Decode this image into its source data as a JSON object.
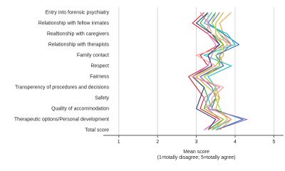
{
  "chart_data": {
    "type": "line",
    "orientation": "horizontal",
    "xlabel": [
      "Mean score",
      "(1=totally disagree; 5=totally agree)"
    ],
    "categories": [
      "Entry into forensic psychiatry",
      "Relationship with fellow inmates",
      "Realtionship with caregivers",
      "Relationship with therapists",
      "Family contact",
      "Respect",
      "Fairness",
      "Transperency of procedures and decisions",
      "Safety",
      "Quality of accommodation",
      "Therapeutic options/Personal development",
      "Total score"
    ],
    "xlim": [
      0.6,
      5.25
    ],
    "xticks": [
      1,
      2,
      3,
      4,
      5
    ],
    "grid": true,
    "series": [
      {
        "color": "#f0a030",
        "values": [
          3.9,
          3.6,
          3.7,
          3.9,
          3.6,
          3.7,
          3.2,
          3.5,
          3.6,
          3.5,
          3.9,
          3.6
        ]
      },
      {
        "color": "#2ca02c",
        "values": [
          3.3,
          3.1,
          3.4,
          3.7,
          3.3,
          3.4,
          2.9,
          3.2,
          3.3,
          3.2,
          3.7,
          3.3
        ]
      },
      {
        "color": "#1f77b4",
        "values": [
          3.5,
          3.3,
          3.7,
          4.1,
          3.5,
          3.7,
          3.1,
          3.4,
          3.5,
          3.4,
          4.2,
          3.5
        ]
      },
      {
        "color": "#d62728",
        "values": [
          3.2,
          2.9,
          3.3,
          3.6,
          3.1,
          3.3,
          2.8,
          3.0,
          3.2,
          3.1,
          3.6,
          3.2
        ]
      },
      {
        "color": "#9467bd",
        "values": [
          3.6,
          3.4,
          3.6,
          3.9,
          3.6,
          3.6,
          3.1,
          3.4,
          3.5,
          3.3,
          4.3,
          3.5
        ]
      },
      {
        "color": "#17becf",
        "values": [
          3.4,
          3.2,
          3.8,
          4.0,
          3.2,
          3.9,
          3.3,
          3.5,
          3.3,
          3.4,
          3.9,
          3.4
        ]
      },
      {
        "color": "#e377c2",
        "values": [
          3.1,
          3.3,
          3.3,
          3.5,
          3.4,
          3.3,
          2.9,
          3.6,
          3.2,
          3.3,
          3.6,
          3.2
        ]
      },
      {
        "color": "#bcbd22",
        "values": [
          3.7,
          3.5,
          3.5,
          3.7,
          3.7,
          3.5,
          3.0,
          3.3,
          3.6,
          3.2,
          3.7,
          3.4
        ]
      },
      {
        "color": "#393b79",
        "values": [
          3.3,
          3.0,
          3.4,
          3.6,
          3.3,
          3.4,
          2.9,
          3.2,
          3.1,
          3.0,
          3.5,
          3.3
        ]
      },
      {
        "color": "#8ce042",
        "values": [
          3.5,
          3.4,
          3.6,
          3.8,
          3.5,
          3.6,
          3.2,
          3.5,
          3.5,
          3.6,
          3.8,
          3.5
        ]
      },
      {
        "color": "#ff9896",
        "values": [
          3.3,
          3.3,
          3.4,
          3.9,
          3.0,
          3.5,
          2.9,
          3.7,
          3.4,
          3.4,
          3.9,
          3.3
        ]
      }
    ]
  }
}
